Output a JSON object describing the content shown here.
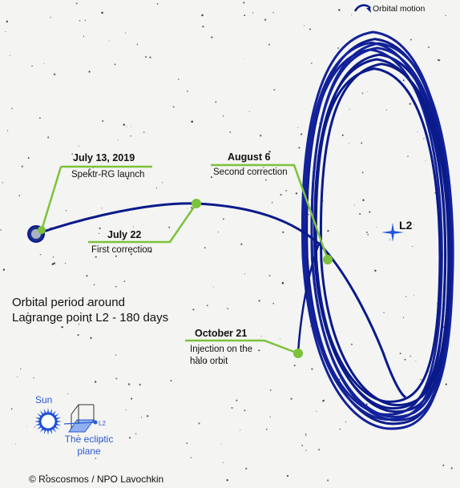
{
  "colors": {
    "background": "#f4f4f2",
    "orbit": "#0a1a8a",
    "marker": "#7cc23c",
    "leader": "#7cc23c",
    "star": "#2255dd",
    "sun": "#1a4fd8",
    "legend_text": "#2a5bd6"
  },
  "orbital_motion_label": "Orbital motion",
  "l2_label": "L2",
  "events": [
    {
      "date": "July 13, 2019",
      "description": "Spektr-RG launch"
    },
    {
      "date": "July 22",
      "description": "First correction"
    },
    {
      "date": "August 6",
      "description": "Second correction"
    },
    {
      "date": "October 21",
      "description": "Injection on the halo orbit"
    }
  ],
  "period_text": {
    "line1": "Orbital period around",
    "line2": "Lagrange point L2 - 180 days"
  },
  "legend": {
    "sun_label": "Sun",
    "l2_small_label": "L2",
    "ecliptic_label_line1": "The ecliptic",
    "ecliptic_label_line2": "plane",
    "icons": [
      "sun-icon",
      "ecliptic-plane-icon"
    ]
  },
  "credit": "© Roscosmos / NPO Lavochkin"
}
